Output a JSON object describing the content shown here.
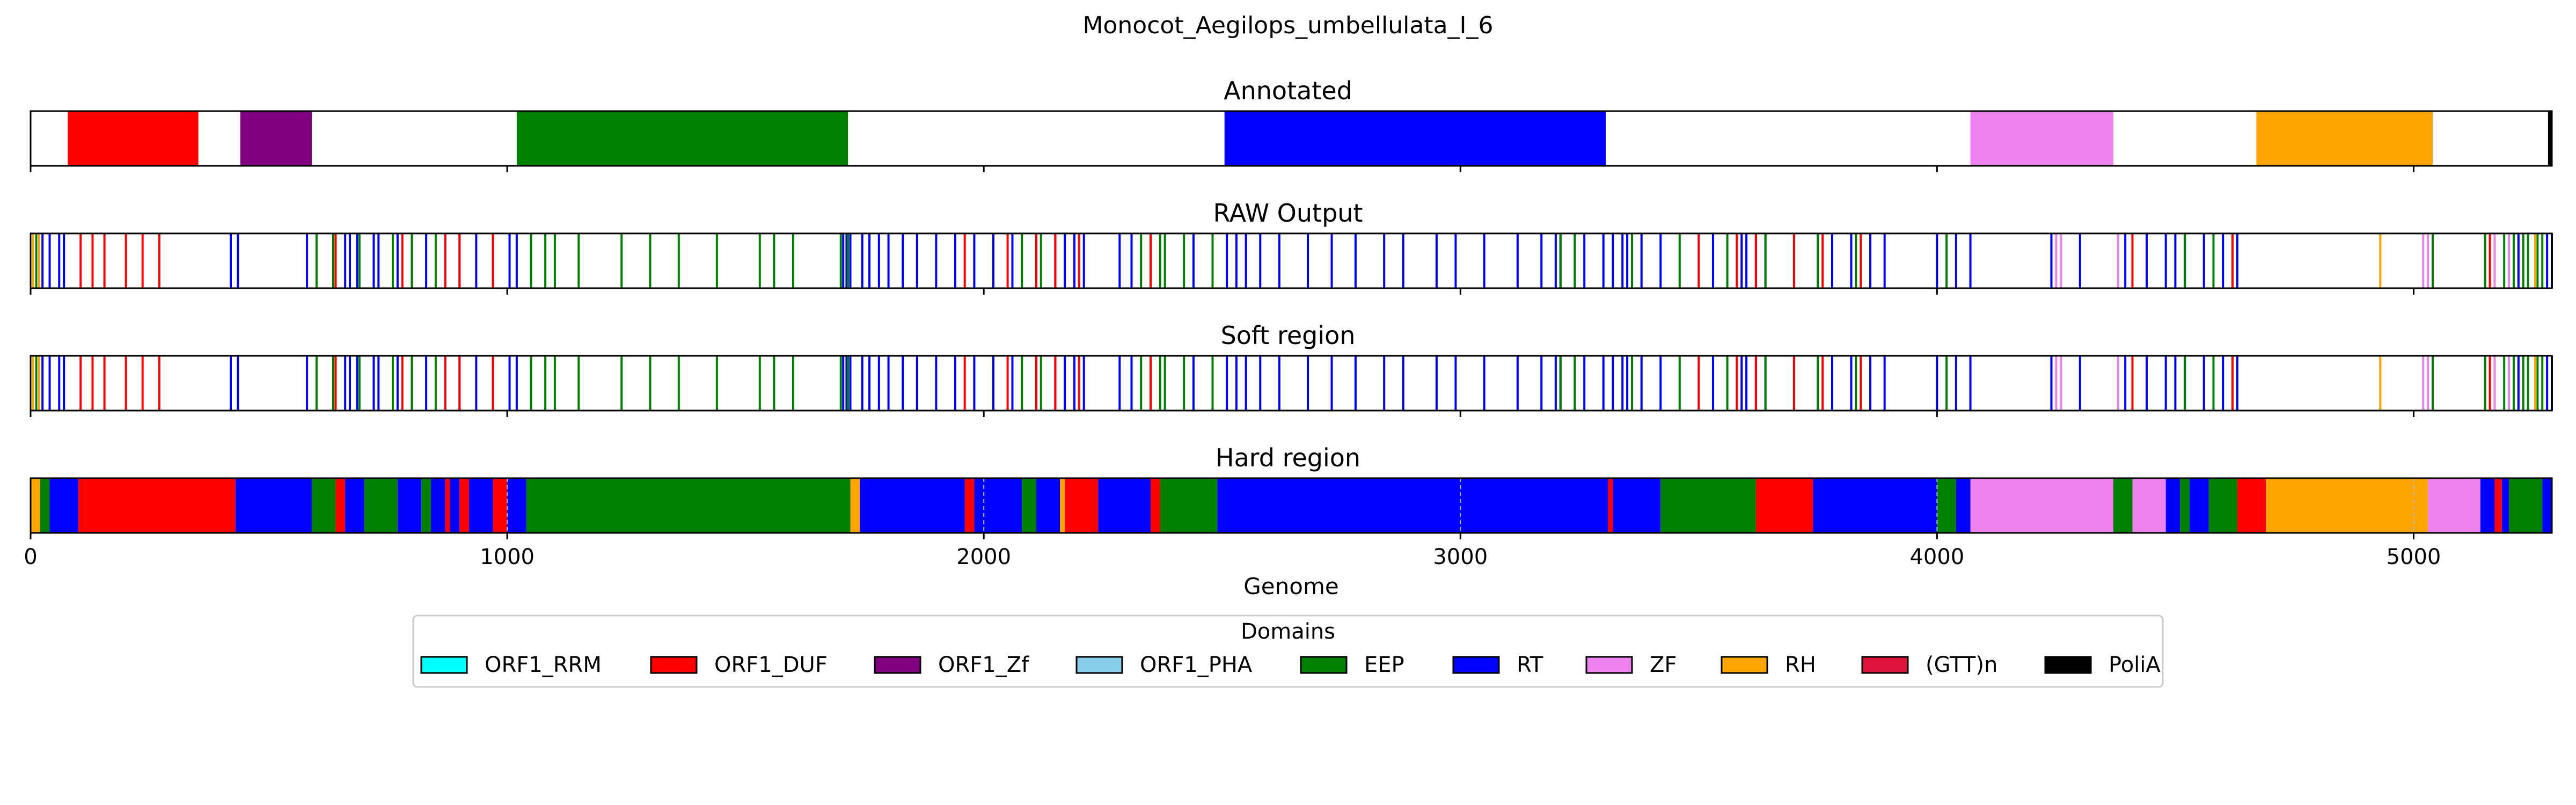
{
  "chart_data": {
    "type": "genome-track",
    "title": "Monocot_Aegilops_umbellulata_I_6",
    "xlabel": "Genome",
    "xlim": [
      0,
      5290
    ],
    "xticks": [
      0,
      1000,
      2000,
      3000,
      4000,
      5000
    ],
    "xtick_labels": [
      "0",
      "1000",
      "2000",
      "3000",
      "4000",
      "5000"
    ],
    "legend": {
      "title": "Domains",
      "placement": "bottom-center",
      "entries": [
        {
          "name": "ORF1_RRM",
          "color": "#00ffff"
        },
        {
          "name": "ORF1_DUF",
          "color": "#ff0000"
        },
        {
          "name": "ORF1_Zf",
          "color": "#800080"
        },
        {
          "name": "ORF1_PHA",
          "color": "#87ceeb"
        },
        {
          "name": "EEP",
          "color": "#008000"
        },
        {
          "name": "RT",
          "color": "#0000ff"
        },
        {
          "name": "ZF",
          "color": "#ee82ee"
        },
        {
          "name": "RH",
          "color": "#ffa500"
        },
        {
          "name": "(GTT)n",
          "color": "#dc143c"
        },
        {
          "name": "PoliA",
          "color": "#000000"
        }
      ]
    },
    "tracks": [
      {
        "title": "Annotated",
        "segments": [
          {
            "domain": "ORF1_DUF",
            "start": 78,
            "end": 352
          },
          {
            "domain": "ORF1_Zf",
            "start": 440,
            "end": 590
          },
          {
            "domain": "EEP",
            "start": 1020,
            "end": 1715
          },
          {
            "domain": "RT",
            "start": 2505,
            "end": 3305
          },
          {
            "domain": "ZF",
            "start": 4070,
            "end": 4370
          },
          {
            "domain": "RH",
            "start": 4670,
            "end": 5040
          },
          {
            "domain": "PoliA",
            "start": 5282,
            "end": 5290
          }
        ]
      },
      {
        "title": "RAW Output",
        "hits": [
          {
            "domain": "RH",
            "pos": [
              5,
              18,
              4930,
              5170,
              5255
            ]
          },
          {
            "domain": "RT",
            "pos": [
              25,
              40,
              60,
              70,
              420,
              435,
              580,
              660,
              670,
              685,
              720,
              730,
              770,
              830,
              870,
              900,
              935,
              1005,
              1020,
              1705,
              1712,
              1720,
              1745,
              1760,
              1780,
              1800,
              1830,
              1860,
              1900,
              1940,
              1980,
              2020,
              2060,
              2110,
              2150,
              2170,
              2190,
              2210,
              2285,
              2310,
              2350,
              2440,
              2510,
              2530,
              2550,
              2580,
              2620,
              2680,
              2730,
              2780,
              2840,
              2880,
              2950,
              2990,
              3050,
              3120,
              3170,
              3200,
              3210,
              3240,
              3260,
              3300,
              3320,
              3340,
              3350,
              3380,
              3420,
              3530,
              3590,
              3600,
              3620,
              3640,
              3700,
              3750,
              3780,
              3820,
              3860,
              3890,
              4000,
              4040,
              4070,
              4240,
              4300,
              4395,
              4440,
              4480,
              4500,
              4520,
              4560,
              4600,
              4630,
              5220,
              5280,
              5290
            ]
          },
          {
            "domain": "ORF1_DUF",
            "pos": [
              105,
              130,
              155,
              200,
              235,
              270,
              640,
              780,
              870,
              900,
              970,
              1960,
              2050,
              2110,
              2150,
              2200,
              2350,
              3500,
              3580,
              3620,
              3700,
              3760,
              3840,
              4410,
              4620,
              5160
            ]
          },
          {
            "domain": "EEP",
            "pos": [
              12,
              600,
              635,
              690,
              760,
              800,
              850,
              1050,
              1080,
              1100,
              1150,
              1240,
              1300,
              1360,
              1440,
              1530,
              1560,
              1600,
              1700,
              1715,
              2080,
              2120,
              2330,
              2370,
              2380,
              2420,
              2480,
              3210,
              3240,
              3360,
              3460,
              3560,
              3640,
              3750,
              3830,
              4020,
              4520,
              4580,
              5040,
              5150,
              5190,
              5210,
              5230,
              5240,
              5260,
              5270
            ]
          },
          {
            "domain": "ZF",
            "pos": [
              4250,
              4260,
              4380,
              5020,
              5030,
              5170,
              5200
            ]
          }
        ]
      },
      {
        "title": "Soft region",
        "hits": [
          {
            "domain": "RH",
            "pos": [
              5,
              18,
              4930,
              5170,
              5255
            ]
          },
          {
            "domain": "RT",
            "pos": [
              25,
              40,
              60,
              70,
              420,
              435,
              580,
              660,
              670,
              685,
              720,
              730,
              770,
              830,
              870,
              900,
              935,
              1005,
              1020,
              1705,
              1712,
              1720,
              1745,
              1760,
              1780,
              1800,
              1830,
              1860,
              1900,
              1940,
              1980,
              2020,
              2060,
              2110,
              2150,
              2170,
              2190,
              2210,
              2285,
              2310,
              2350,
              2440,
              2510,
              2530,
              2550,
              2580,
              2620,
              2680,
              2730,
              2780,
              2840,
              2880,
              2950,
              2990,
              3050,
              3120,
              3170,
              3200,
              3210,
              3240,
              3260,
              3300,
              3320,
              3340,
              3350,
              3380,
              3420,
              3530,
              3590,
              3600,
              3620,
              3640,
              3700,
              3750,
              3780,
              3820,
              3860,
              3890,
              4000,
              4040,
              4070,
              4240,
              4300,
              4395,
              4440,
              4480,
              4500,
              4520,
              4560,
              4600,
              4630,
              5220,
              5280,
              5290
            ]
          },
          {
            "domain": "ORF1_DUF",
            "pos": [
              105,
              130,
              155,
              200,
              235,
              270,
              640,
              780,
              870,
              900,
              970,
              1960,
              2050,
              2110,
              2150,
              2200,
              2350,
              3500,
              3580,
              3620,
              3700,
              3760,
              3840,
              4410,
              4620,
              5160
            ]
          },
          {
            "domain": "EEP",
            "pos": [
              12,
              600,
              635,
              690,
              760,
              800,
              850,
              1050,
              1080,
              1100,
              1150,
              1240,
              1300,
              1360,
              1440,
              1530,
              1560,
              1600,
              1700,
              1715,
              2080,
              2120,
              2330,
              2370,
              2380,
              2420,
              2480,
              3210,
              3240,
              3360,
              3460,
              3560,
              3640,
              3750,
              3830,
              4020,
              4520,
              4580,
              5040,
              5150,
              5190,
              5210,
              5230,
              5240,
              5260,
              5270
            ]
          },
          {
            "domain": "ZF",
            "pos": [
              4250,
              4260,
              4380,
              5020,
              5030,
              5170,
              5200
            ]
          }
        ]
      },
      {
        "title": "Hard region",
        "segments": [
          {
            "domain": "RH",
            "start": 0,
            "end": 20
          },
          {
            "domain": "EEP",
            "start": 20,
            "end": 40
          },
          {
            "domain": "RT",
            "start": 40,
            "end": 100
          },
          {
            "domain": "ORF1_DUF",
            "start": 100,
            "end": 430
          },
          {
            "domain": "RT",
            "start": 430,
            "end": 590
          },
          {
            "domain": "EEP",
            "start": 590,
            "end": 640
          },
          {
            "domain": "ORF1_DUF",
            "start": 640,
            "end": 660
          },
          {
            "domain": "RT",
            "start": 660,
            "end": 700
          },
          {
            "domain": "EEP",
            "start": 700,
            "end": 770
          },
          {
            "domain": "RT",
            "start": 770,
            "end": 820
          },
          {
            "domain": "EEP",
            "start": 820,
            "end": 840
          },
          {
            "domain": "RT",
            "start": 840,
            "end": 870
          },
          {
            "domain": "ORF1_DUF",
            "start": 870,
            "end": 880
          },
          {
            "domain": "RT",
            "start": 880,
            "end": 900
          },
          {
            "domain": "ORF1_DUF",
            "start": 900,
            "end": 920
          },
          {
            "domain": "RT",
            "start": 920,
            "end": 970
          },
          {
            "domain": "ORF1_DUF",
            "start": 970,
            "end": 1000
          },
          {
            "domain": "RT",
            "start": 1000,
            "end": 1040
          },
          {
            "domain": "EEP",
            "start": 1040,
            "end": 1720
          },
          {
            "domain": "RH",
            "start": 1720,
            "end": 1740
          },
          {
            "domain": "RT",
            "start": 1740,
            "end": 1960
          },
          {
            "domain": "ORF1_DUF",
            "start": 1960,
            "end": 1980
          },
          {
            "domain": "RT",
            "start": 1980,
            "end": 2080
          },
          {
            "domain": "EEP",
            "start": 2080,
            "end": 2110
          },
          {
            "domain": "RT",
            "start": 2110,
            "end": 2160
          },
          {
            "domain": "RH",
            "start": 2160,
            "end": 2170
          },
          {
            "domain": "ORF1_DUF",
            "start": 2170,
            "end": 2240
          },
          {
            "domain": "RT",
            "start": 2240,
            "end": 2350
          },
          {
            "domain": "ORF1_DUF",
            "start": 2350,
            "end": 2370
          },
          {
            "domain": "EEP",
            "start": 2370,
            "end": 2490
          },
          {
            "domain": "RT",
            "start": 2490,
            "end": 3310
          },
          {
            "domain": "ORF1_DUF",
            "start": 3310,
            "end": 3320
          },
          {
            "domain": "RT",
            "start": 3320,
            "end": 3420
          },
          {
            "domain": "EEP",
            "start": 3420,
            "end": 3620
          },
          {
            "domain": "ORF1_DUF",
            "start": 3620,
            "end": 3740
          },
          {
            "domain": "RT",
            "start": 3740,
            "end": 4000
          },
          {
            "domain": "EEP",
            "start": 4000,
            "end": 4040
          },
          {
            "domain": "RT",
            "start": 4040,
            "end": 4070
          },
          {
            "domain": "ZF",
            "start": 4070,
            "end": 4370
          },
          {
            "domain": "EEP",
            "start": 4370,
            "end": 4410
          },
          {
            "domain": "ZF",
            "start": 4410,
            "end": 4480
          },
          {
            "domain": "RT",
            "start": 4480,
            "end": 4510
          },
          {
            "domain": "EEP",
            "start": 4510,
            "end": 4530
          },
          {
            "domain": "RT",
            "start": 4530,
            "end": 4570
          },
          {
            "domain": "EEP",
            "start": 4570,
            "end": 4630
          },
          {
            "domain": "ORF1_DUF",
            "start": 4630,
            "end": 4690
          },
          {
            "domain": "RH",
            "start": 4690,
            "end": 5030
          },
          {
            "domain": "ZF",
            "start": 5030,
            "end": 5140
          },
          {
            "domain": "RT",
            "start": 5140,
            "end": 5170
          },
          {
            "domain": "ORF1_DUF",
            "start": 5170,
            "end": 5185
          },
          {
            "domain": "RT",
            "start": 5185,
            "end": 5200
          },
          {
            "domain": "EEP",
            "start": 5200,
            "end": 5270
          },
          {
            "domain": "RT",
            "start": 5270,
            "end": 5290
          }
        ]
      }
    ]
  }
}
